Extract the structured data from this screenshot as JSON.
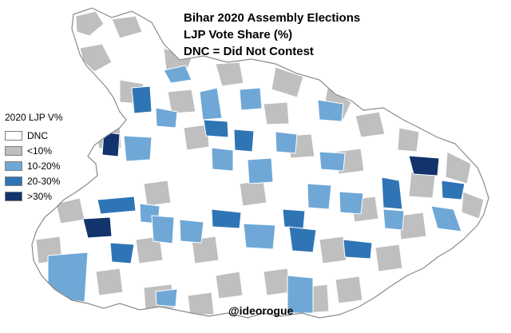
{
  "title": {
    "line1": "Bihar 2020 Assembly Elections",
    "line2": "LJP Vote Share (%)",
    "line3": "DNC = Did Not Contest"
  },
  "legend": {
    "title": "2020 LJP V%",
    "items": [
      {
        "label": "DNC",
        "color": "#ffffff"
      },
      {
        "label": "<10%",
        "color": "#bfbfbf"
      },
      {
        "label": "10-20%",
        "color": "#6fa8d6"
      },
      {
        "label": "20-30%",
        "color": "#2f75b5"
      },
      {
        "label": ">30%",
        "color": "#12336b"
      }
    ]
  },
  "credit": "@ideorogue"
}
